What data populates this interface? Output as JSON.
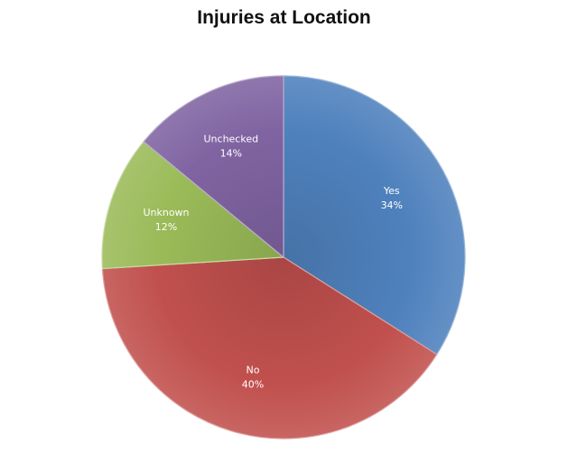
{
  "chart_data": {
    "type": "pie",
    "title": "Injuries at Location",
    "slices": [
      {
        "name": "Yes",
        "value": 34,
        "label_value": "34%",
        "color": "#4f81bd"
      },
      {
        "name": "No",
        "value": 40,
        "label_value": "40%",
        "color": "#c0504d"
      },
      {
        "name": "Unknown",
        "value": 12,
        "label_value": "12%",
        "color": "#9bbb59"
      },
      {
        "name": "Unchecked",
        "value": 14,
        "label_value": "14%",
        "color": "#8064a2"
      }
    ],
    "start_direction": "top",
    "direction": "clockwise",
    "legend": "none",
    "data_labels": "inside"
  }
}
